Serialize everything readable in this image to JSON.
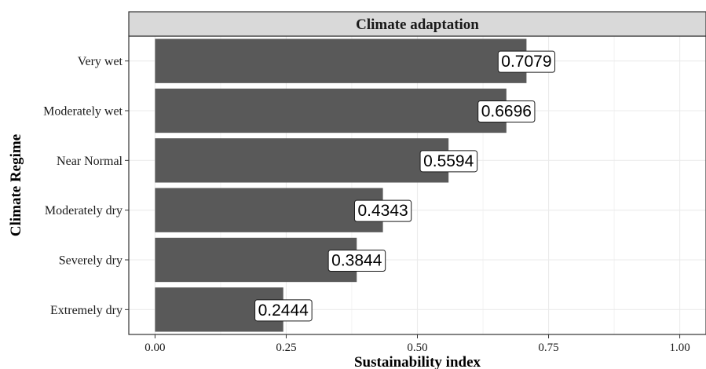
{
  "chart_data": {
    "type": "bar",
    "orientation": "horizontal",
    "title": "Climate adaptation",
    "xlabel": "Sustainability index",
    "ylabel": "Climate Regime",
    "categories": [
      "Very wet",
      "Moderately wet",
      "Near Normal",
      "Moderately dry",
      "Severely dry",
      "Extremely dry"
    ],
    "values": [
      0.7079,
      0.6696,
      0.5594,
      0.4343,
      0.3844,
      0.2444
    ],
    "data_labels": [
      "0.7079",
      "0.6696",
      "0.5594",
      "0.4343",
      "0.3844",
      "0.2444"
    ],
    "xlim": [
      -0.05,
      1.05
    ],
    "xticks": [
      0,
      0.25,
      0.5,
      0.75,
      1.0
    ],
    "xtick_labels": [
      "0.00",
      "0.25",
      "0.50",
      "0.75",
      "1.00"
    ],
    "grid": true,
    "legend": "none",
    "colors": {
      "bar": "#595959",
      "strip_background": "#d9d9d9",
      "grid": "#ebebeb",
      "label_background": "#ffffff"
    }
  }
}
